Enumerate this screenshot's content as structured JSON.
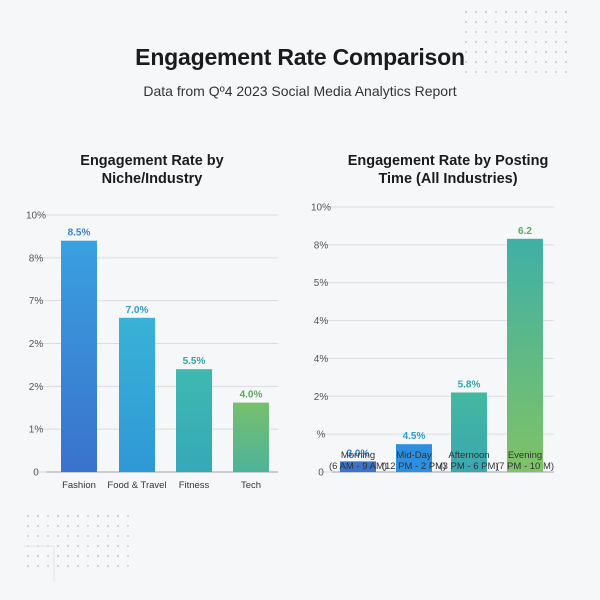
{
  "header": {
    "title": "Engagement Rate Comparison",
    "subtitle": "Data from Qº4 2023 Social Media Analytics Report"
  },
  "colors": {
    "label_blue": "#3a7fd0",
    "label_teal": "#2ea7a6",
    "label_green": "#5aa860",
    "grid": "#d8dde2",
    "axis": "#9aa3ab"
  },
  "chart_data": [
    {
      "type": "bar",
      "title": "Engagement Rate by Niche/Industry",
      "title_lines": [
        "Engagement Rate by",
        "Niche/Industry"
      ],
      "categories": [
        "Fashion",
        "Food & Travel",
        "Fitness",
        "Tech"
      ],
      "category_lines": [
        [
          "Fashion"
        ],
        [
          "Food & Travel"
        ],
        [
          "Fitness"
        ],
        [
          "Tech"
        ]
      ],
      "values": [
        8.5,
        7.0,
        5.5,
        4.0
      ],
      "data_labels": [
        "8.5%",
        "7.0%",
        "5.5%",
        "4.0%"
      ],
      "bar_fractions": [
        0.9,
        0.6,
        0.4,
        0.27
      ],
      "bar_colors": [
        [
          "#3a72cc",
          "#3aa0e0"
        ],
        [
          "#2f98d6",
          "#39b2d6"
        ],
        [
          "#35a9b8",
          "#3fb8b0"
        ],
        [
          "#4db39a",
          "#78bf6c"
        ]
      ],
      "label_colors": [
        "#3a7fd0",
        "#2f9bd2",
        "#2ea7a6",
        "#5aa860"
      ],
      "y_tick_labels": [
        "0",
        "1%",
        "2%",
        "2%",
        "7%",
        "8%",
        "10%"
      ],
      "xlabel": "",
      "ylabel": "",
      "grid": true
    },
    {
      "type": "bar",
      "title": "Engagement Rate by Posting Time (All Industries)",
      "title_lines": [
        "Engagement Rate by Posting",
        "Time (All Industries)"
      ],
      "categories": [
        "Morning (6 AM - 9 AM)",
        "Mid-Day (12 PM - 2 PM)",
        "Afternoon (3 PM - 6 PM)",
        "Evening (7 PM - 10 M)"
      ],
      "category_lines": [
        [
          "Morning",
          "(6 AM - 9 AM)"
        ],
        [
          "Mid-Day",
          "(12 PM - 2 PM)"
        ],
        [
          "Afternoon",
          "(3 PM - 6 PM)"
        ],
        [
          "Evening",
          "(7 PM - 10 M)"
        ]
      ],
      "values": [
        3.0,
        4.5,
        5.8,
        6.2
      ],
      "data_labels": [
        "3.0%",
        "4.5%",
        "5.8%",
        "6.2"
      ],
      "bar_fractions": [
        0.04,
        0.105,
        0.3,
        0.88
      ],
      "bar_colors": [
        [
          "#3a72cc",
          "#3a72cc"
        ],
        [
          "#2e8fe0",
          "#2e8fe0"
        ],
        [
          "#3aa7b0",
          "#44b8a0"
        ],
        [
          "#80c266",
          "#3fb0a6"
        ]
      ],
      "label_colors": [
        "#3a7fd0",
        "#2f9bd2",
        "#2ea7a6",
        "#5aa860"
      ],
      "y_tick_labels": [
        "0",
        "%",
        "2%",
        "4%",
        "4%",
        "5%",
        "8%",
        "10%"
      ],
      "xlabel": "",
      "ylabel": "",
      "grid": true
    }
  ]
}
